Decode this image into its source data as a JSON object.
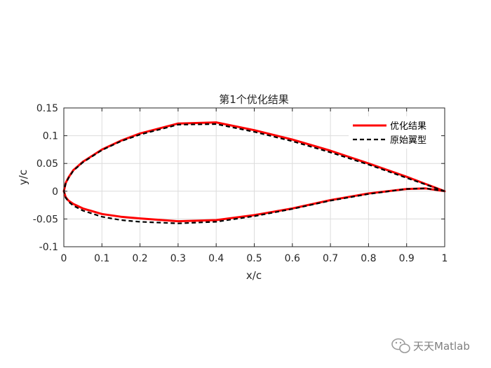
{
  "chart_data": {
    "type": "line",
    "title": "第1个优化结果",
    "xlabel": "x/c",
    "ylabel": "y/c",
    "xlim": [
      0,
      1
    ],
    "ylim": [
      -0.1,
      0.15
    ],
    "xticks": [
      0,
      0.1,
      0.2,
      0.3,
      0.4,
      0.5,
      0.6,
      0.7,
      0.8,
      0.9,
      1
    ],
    "yticks": [
      -0.1,
      -0.05,
      0,
      0.05,
      0.1,
      0.15
    ],
    "xtick_labels": [
      "0",
      "0.1",
      "0.2",
      "0.3",
      "0.4",
      "0.5",
      "0.6",
      "0.7",
      "0.8",
      "0.9",
      "1"
    ],
    "ytick_labels": [
      "-0.1",
      "-0.05",
      "0",
      "0.05",
      "0.1",
      "0.15"
    ],
    "grid": true,
    "legend_position": "top-right",
    "series": [
      {
        "name": "优化结果",
        "color": "#ff0000",
        "style": "solid",
        "x": [
          1,
          0.95,
          0.9,
          0.8,
          0.7,
          0.6,
          0.5,
          0.4,
          0.3,
          0.2,
          0.15,
          0.1,
          0.05,
          0.025,
          0.0125,
          0.005,
          0,
          0.005,
          0.0125,
          0.025,
          0.05,
          0.1,
          0.15,
          0.2,
          0.3,
          0.4,
          0.5,
          0.6,
          0.7,
          0.8,
          0.9,
          0.95,
          1
        ],
        "y": [
          0,
          0.013,
          0.026,
          0.05,
          0.073,
          0.093,
          0.11,
          0.124,
          0.122,
          0.104,
          0.091,
          0.075,
          0.053,
          0.038,
          0.025,
          0.015,
          0,
          -0.011,
          -0.017,
          -0.023,
          -0.031,
          -0.041,
          -0.046,
          -0.049,
          -0.054,
          -0.052,
          -0.043,
          -0.031,
          -0.016,
          -0.004,
          0.004,
          0.005,
          0
        ],
        "label": "优化结果"
      },
      {
        "name": "原始翼型",
        "color": "#000000",
        "style": "dashed",
        "x": [
          1,
          0.95,
          0.9,
          0.8,
          0.7,
          0.6,
          0.5,
          0.4,
          0.3,
          0.2,
          0.15,
          0.1,
          0.05,
          0.025,
          0.0125,
          0.005,
          0,
          0.005,
          0.0125,
          0.025,
          0.05,
          0.1,
          0.15,
          0.2,
          0.3,
          0.4,
          0.5,
          0.6,
          0.7,
          0.8,
          0.9,
          0.95,
          1
        ],
        "y": [
          0,
          0.012,
          0.024,
          0.048,
          0.07,
          0.09,
          0.107,
          0.121,
          0.12,
          0.102,
          0.09,
          0.074,
          0.052,
          0.037,
          0.024,
          0.014,
          0,
          -0.012,
          -0.019,
          -0.026,
          -0.035,
          -0.046,
          -0.052,
          -0.055,
          -0.058,
          -0.055,
          -0.045,
          -0.032,
          -0.017,
          -0.005,
          0.004,
          0.005,
          0
        ],
        "label": "原始翼型"
      }
    ]
  },
  "watermark": {
    "text": "天天Matlab",
    "icon": "wechat-icon"
  }
}
